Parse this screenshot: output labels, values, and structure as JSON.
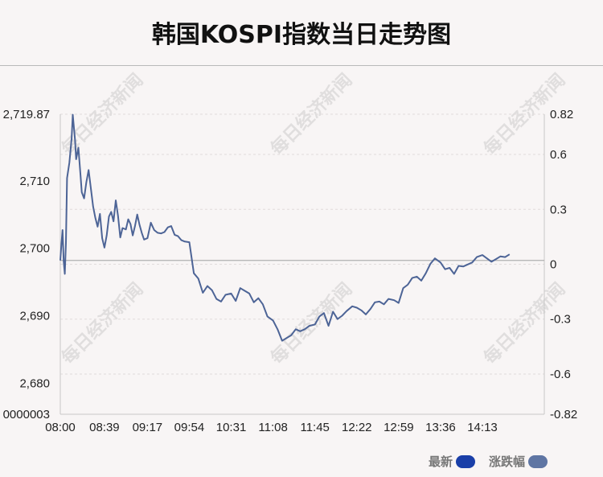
{
  "title": "韩国KOSPI指数当日走势图",
  "watermark": "每日经济新闻",
  "legend": {
    "latest": {
      "label": "最新",
      "color": "#1a3fa8"
    },
    "change": {
      "label": "涨跌幅",
      "color": "#5f75a3"
    }
  },
  "chart_data": {
    "type": "line",
    "line_color": "#4d6496",
    "base_value": 2698.2,
    "y_left": {
      "min": 2675.4,
      "max": 2719.87,
      "ticks": [
        2719.87,
        2710,
        2700,
        2690,
        2680
      ],
      "tick_labels": [
        "2,719.87",
        "2,710",
        "2,700",
        "2,690",
        "2,680"
      ],
      "bottom_label": "0000003"
    },
    "y_right": {
      "min": -0.82,
      "max": 0.82,
      "ticks": [
        0.82,
        0.6,
        0.3,
        0,
        -0.3,
        -0.6,
        -0.82
      ],
      "tick_labels": [
        "0.82",
        "0.6",
        "0.3",
        "0",
        "-0.3",
        "-0.6",
        "-0.82"
      ]
    },
    "x_tick_labels": [
      "08:00",
      "08:39",
      "09:17",
      "09:54",
      "10:31",
      "11:08",
      "11:45",
      "12:22",
      "12:59",
      "13:36",
      "14:13"
    ],
    "series": [
      {
        "x": [
          "08:00",
          "08:01",
          "08:02",
          "08:03",
          "08:04",
          "08:05",
          "08:06",
          "08:08",
          "08:10",
          "08:11",
          "08:13",
          "08:14",
          "08:16",
          "08:18",
          "08:19",
          "08:21",
          "08:23",
          "08:25",
          "08:27",
          "08:29",
          "08:31",
          "08:33",
          "08:35",
          "08:37",
          "08:39",
          "08:41",
          "08:43",
          "08:45",
          "08:47",
          "08:49",
          "08:51",
          "08:53",
          "08:55",
          "08:58",
          "09:00",
          "09:02",
          "09:04",
          "09:06",
          "09:08",
          "09:10",
          "09:12",
          "09:14",
          "09:17",
          "09:20",
          "09:23",
          "09:26",
          "09:29",
          "09:32",
          "09:35",
          "09:38",
          "09:41",
          "09:44",
          "09:47",
          "09:50",
          "09:54",
          "09:58",
          "10:02",
          "10:06",
          "10:10",
          "10:14",
          "10:18",
          "10:22",
          "10:26",
          "10:31",
          "10:35",
          "10:39",
          "10:43",
          "10:47",
          "10:51",
          "10:55",
          "10:59",
          "11:03",
          "11:08",
          "11:12",
          "11:16",
          "11:20",
          "11:24",
          "11:28",
          "11:32",
          "11:36",
          "11:40",
          "11:45",
          "11:49",
          "11:53",
          "11:57",
          "12:01",
          "12:05",
          "12:09",
          "12:13",
          "12:18",
          "12:22",
          "12:26",
          "12:30",
          "12:34",
          "12:38",
          "12:42",
          "12:46",
          "12:50",
          "12:55",
          "12:59",
          "13:03",
          "13:07",
          "13:11",
          "13:15",
          "13:19",
          "13:23",
          "13:27",
          "13:31",
          "13:36",
          "13:40",
          "13:44",
          "13:48",
          "13:52",
          "13:56",
          "14:00",
          "14:04",
          "14:08",
          "14:13",
          "14:17",
          "14:21",
          "14:25",
          "14:29",
          "14:33",
          "14:37"
        ],
        "values": [
          2698.2,
          2700.6,
          2702.7,
          2698.1,
          2696.2,
          2700.8,
          2710.4,
          2712.7,
          2716.3,
          2719.8,
          2716.1,
          2713.2,
          2714.9,
          2710.6,
          2708.3,
          2707.4,
          2709.8,
          2711.6,
          2708.9,
          2706.2,
          2704.5,
          2703.2,
          2705.1,
          2701.5,
          2700.1,
          2701.9,
          2704.7,
          2705.4,
          2704.0,
          2707.1,
          2704.8,
          2701.6,
          2703.0,
          2702.8,
          2704.3,
          2703.6,
          2701.9,
          2703.3,
          2705.0,
          2703.5,
          2702.3,
          2701.3,
          2701.5,
          2703.8,
          2702.7,
          2702.3,
          2702.2,
          2702.4,
          2703.1,
          2703.3,
          2702.0,
          2701.8,
          2701.2,
          2701.0,
          2700.9,
          2696.3,
          2695.5,
          2693.4,
          2694.4,
          2693.8,
          2692.5,
          2692.1,
          2693.1,
          2693.3,
          2692.2,
          2694.1,
          2693.7,
          2693.3,
          2692.0,
          2692.6,
          2691.7,
          2689.9,
          2689.3,
          2688.0,
          2686.3,
          2686.7,
          2687.1,
          2688.0,
          2687.7,
          2688.0,
          2688.5,
          2688.7,
          2689.9,
          2690.4,
          2688.5,
          2690.6,
          2689.5,
          2690.0,
          2690.7,
          2691.4,
          2691.2,
          2690.8,
          2690.2,
          2691.0,
          2692.0,
          2692.1,
          2691.7,
          2692.5,
          2692.3,
          2691.9,
          2694.1,
          2694.6,
          2695.6,
          2695.8,
          2695.2,
          2696.3,
          2697.7,
          2698.5,
          2697.9,
          2696.9,
          2697.1,
          2696.2,
          2697.4,
          2697.3,
          2697.6,
          2697.9,
          2698.7,
          2699.0,
          2698.5,
          2698.0,
          2698.4,
          2698.8,
          2698.7,
          2699.1
        ]
      }
    ],
    "grid": true,
    "legend_position": "bottom-right"
  }
}
